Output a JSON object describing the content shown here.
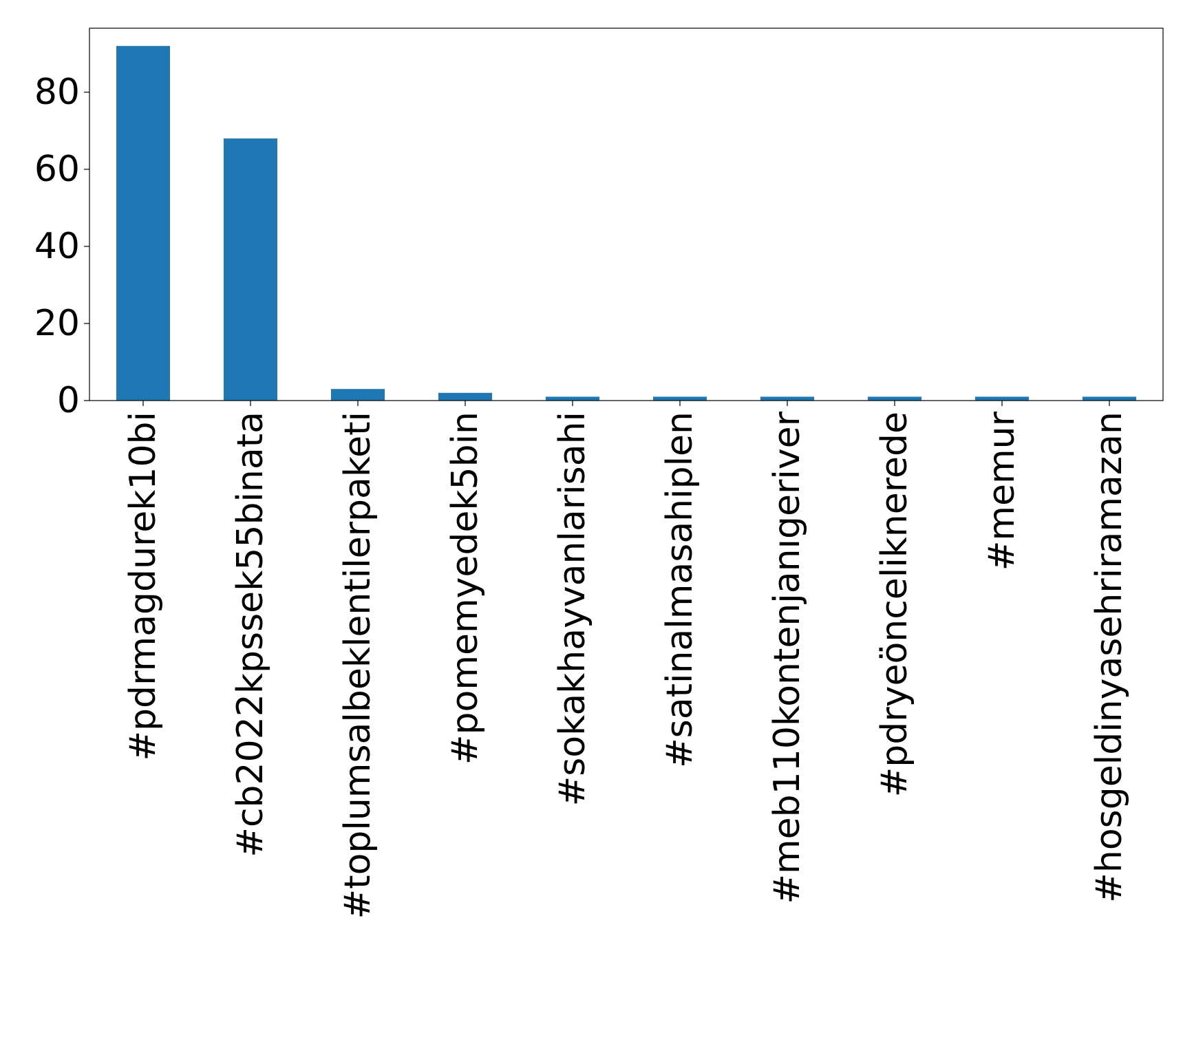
{
  "chart_data": {
    "type": "bar",
    "title": "",
    "xlabel": "",
    "ylabel": "",
    "categories": [
      "#pdrmagdurek10bi",
      "#cb2022kpssek55binata",
      "#toplumsalbeklentilerpaketi",
      "#pomemyedek5bin",
      "#sokakhayvanlarisahi",
      "#satinalmasahiplen",
      "#meb110kontenjanıgeriver",
      "#pdryeöncelikneredе",
      "#memur",
      "#hosgeldinyasehriramazan"
    ],
    "values": [
      92,
      68,
      3,
      2,
      1,
      1,
      1,
      1,
      1,
      1
    ],
    "ylim": [
      0,
      96.6
    ],
    "yticks": [
      0,
      20,
      40,
      60,
      80
    ],
    "grid": false,
    "legend": "none",
    "bar_color": "#1f77b4",
    "axis_color": "#000000"
  }
}
